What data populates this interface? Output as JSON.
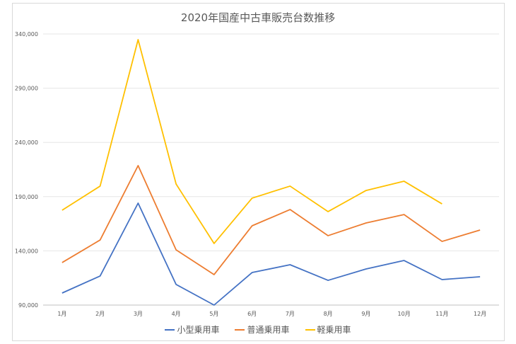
{
  "chart_data": {
    "type": "line",
    "title": "2020年国産中古車販売台数推移",
    "categories": [
      "1月",
      "2月",
      "3月",
      "4月",
      "5月",
      "6月",
      "7月",
      "8月",
      "9月",
      "10月",
      "11月",
      "12月"
    ],
    "ylim": [
      90000,
      340000
    ],
    "yticks": [
      "90,000",
      "140,000",
      "190,000",
      "240,000",
      "290,000",
      "340,000"
    ],
    "grid": true,
    "legend_position": "bottom",
    "series": [
      {
        "name": "小型乗用車",
        "color": "#4472C4",
        "values": [
          101100,
          116800,
          184000,
          109000,
          90000,
          120000,
          127200,
          112800,
          123300,
          131100,
          113500,
          116100
        ]
      },
      {
        "name": "普通乗用車",
        "color": "#ED7D31",
        "values": [
          129200,
          150000,
          218600,
          140900,
          118100,
          163100,
          178100,
          154000,
          165700,
          173500,
          148700,
          159200
        ]
      },
      {
        "name": "軽乗用車",
        "color": "#FFC000",
        "values": [
          177500,
          199700,
          334800,
          201600,
          146800,
          188600,
          199700,
          176200,
          195700,
          204200,
          183300,
          null
        ]
      }
    ]
  }
}
